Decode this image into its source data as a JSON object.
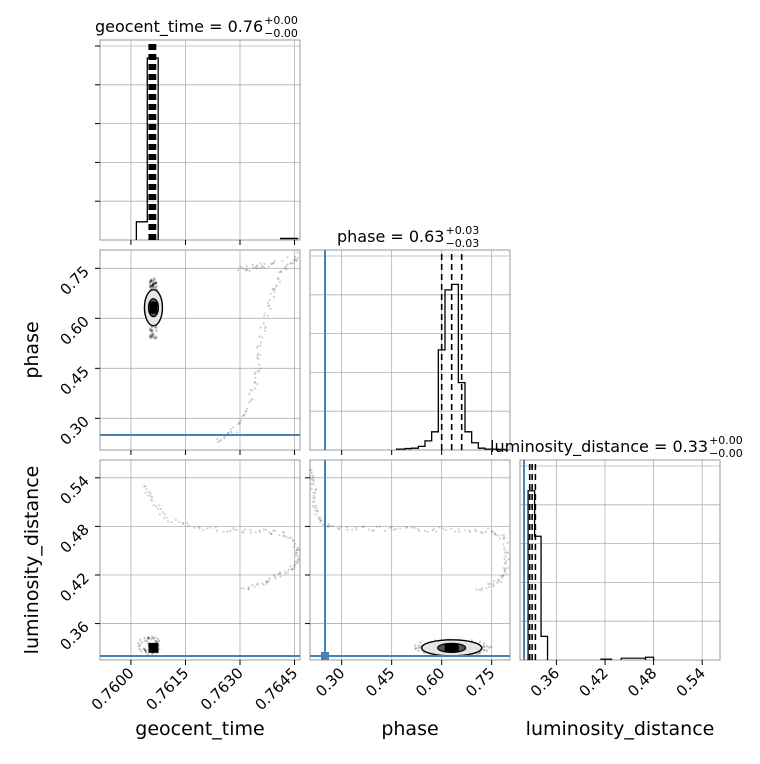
{
  "chart_data": {
    "type": "corner",
    "parameters": [
      "geocent_time",
      "phase",
      "luminosity_distance"
    ],
    "titles": [
      {
        "param": "geocent_time",
        "text": "geocent_time = 0.76",
        "plus": "+0.00",
        "minus": "−0.00"
      },
      {
        "param": "phase",
        "text": "phase = 0.63",
        "plus": "+0.03",
        "minus": "−0.03"
      },
      {
        "param": "luminosity_distance",
        "text": "luminosity_distance = 0.33",
        "plus": "+0.00",
        "minus": "−0.00"
      }
    ],
    "axis_labels": {
      "geocent_time_x": "geocent_time",
      "phase_x": "phase",
      "luminosity_distance_x": "luminosity_distance",
      "phase_y": "phase",
      "luminosity_distance_y": "luminosity_distance"
    },
    "ranges": {
      "geocent_time": [
        0.75915,
        0.76465
      ],
      "phase": [
        0.205,
        0.805
      ],
      "luminosity_distance": [
        0.315,
        0.562
      ]
    },
    "ticks": {
      "geocent_time": [
        "0.7600",
        "0.7615",
        "0.7630",
        "0.7645"
      ],
      "phase": [
        "0.30",
        "0.45",
        "0.60",
        "0.75"
      ],
      "luminosity_distance": [
        "0.36",
        "0.42",
        "0.48",
        "0.54"
      ]
    },
    "tick_values": {
      "geocent_time": [
        0.76,
        0.7615,
        0.763,
        0.7645
      ],
      "phase": [
        0.3,
        0.45,
        0.6,
        0.75
      ],
      "luminosity_distance": [
        0.36,
        0.42,
        0.48,
        0.54
      ]
    },
    "truths": {
      "phase": 0.25,
      "luminosity_distance": 0.32
    },
    "quantiles": {
      "geocent_time": [
        0.76055,
        0.7606,
        0.76063
      ],
      "phase": [
        0.6,
        0.63,
        0.66
      ],
      "luminosity_distance": [
        0.327,
        0.33,
        0.334
      ]
    },
    "histograms": {
      "geocent_time": {
        "edges": [
          0.76015,
          0.76045,
          0.76075
        ],
        "counts": [
          0.1,
          1.0
        ],
        "tail": {
          "from": 0.7641,
          "to": 0.7646,
          "count": 0.01
        }
      },
      "phase": {
        "edges": [
          0.465,
          0.49,
          0.51,
          0.53,
          0.55,
          0.57,
          0.59,
          0.61,
          0.63,
          0.65,
          0.67,
          0.69,
          0.71,
          0.73,
          0.75,
          0.77,
          0.79,
          0.8
        ],
        "counts": [
          0.005,
          0.008,
          0.01,
          0.02,
          0.05,
          0.1,
          0.55,
          0.88,
          0.91,
          0.37,
          0.1,
          0.04,
          0.01,
          0.005,
          0.005,
          0.003,
          0.0
        ]
      },
      "luminosity_distance": {
        "edges": [
          0.325,
          0.333,
          0.341,
          0.349
        ],
        "counts": [
          0.93,
          0.68,
          0.13
        ],
        "tail": [
          {
            "from": 0.415,
            "to": 0.428,
            "count": 0.005
          },
          {
            "from": 0.44,
            "to": 0.47,
            "count": 0.01
          },
          {
            "from": 0.47,
            "to": 0.48,
            "count": 0.015
          }
        ]
      }
    },
    "contours": {
      "geocent_time_phase": {
        "center": [
          0.76062,
          0.632
        ],
        "spread": [
          6e-05,
          0.03
        ],
        "dense_region": [
          0.76052,
          0.76072,
          0.54,
          0.72
        ]
      },
      "phase_luminosity_distance": {
        "center": [
          0.63,
          0.33
        ],
        "spread": [
          0.035,
          0.004
        ]
      },
      "geocent_time_luminosity_distance": {
        "center": [
          0.76062,
          0.33
        ],
        "spread": [
          5e-05,
          0.003
        ]
      }
    },
    "scatter_trails": {
      "geocent_time_phase": [
        [
          0.7624,
          0.23
        ],
        [
          0.7628,
          0.26
        ],
        [
          0.7632,
          0.32
        ],
        [
          0.7634,
          0.4
        ],
        [
          0.7635,
          0.47
        ],
        [
          0.7636,
          0.55
        ],
        [
          0.7638,
          0.63
        ],
        [
          0.764,
          0.7
        ],
        [
          0.7643,
          0.76
        ],
        [
          0.7646,
          0.79
        ],
        [
          0.763,
          0.745
        ],
        [
          0.7635,
          0.752
        ],
        [
          0.764,
          0.76
        ]
      ],
      "geocent_time_luminosity_distance": [
        [
          0.7604,
          0.53
        ],
        [
          0.7606,
          0.51
        ],
        [
          0.761,
          0.49
        ],
        [
          0.7618,
          0.478
        ],
        [
          0.7628,
          0.475
        ],
        [
          0.7636,
          0.475
        ],
        [
          0.7642,
          0.47
        ],
        [
          0.7646,
          0.455
        ],
        [
          0.7646,
          0.44
        ],
        [
          0.7644,
          0.428
        ],
        [
          0.764,
          0.418
        ],
        [
          0.7636,
          0.408
        ],
        [
          0.763,
          0.4
        ]
      ],
      "phase_luminosity_distance": [
        [
          0.21,
          0.55
        ],
        [
          0.215,
          0.53
        ],
        [
          0.22,
          0.51
        ],
        [
          0.23,
          0.49
        ],
        [
          0.26,
          0.48
        ],
        [
          0.35,
          0.478
        ],
        [
          0.45,
          0.476
        ],
        [
          0.55,
          0.476
        ],
        [
          0.65,
          0.476
        ],
        [
          0.74,
          0.475
        ],
        [
          0.79,
          0.465
        ],
        [
          0.795,
          0.44
        ],
        [
          0.79,
          0.42
        ],
        [
          0.76,
          0.41
        ],
        [
          0.7,
          0.4
        ]
      ]
    },
    "grid": true,
    "truth_color": "#4682b4",
    "line_color": "#000000",
    "grid_color": "#b0b0b0"
  }
}
